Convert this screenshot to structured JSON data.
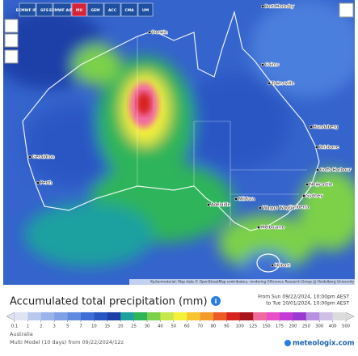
{
  "toolbar": {
    "models": [
      "ECMWF IFS",
      "GFS",
      "ECMWF AIFS",
      "MU",
      "GEM",
      "ACC",
      "CMA",
      "UM"
    ]
  },
  "map": {
    "cities": [
      "Port Moresby",
      "Darwin",
      "Cairns",
      "Townsville",
      "Bundaberg",
      "Brisbane",
      "Coffs Harbour",
      "Newcastle",
      "Sydney",
      "Canberra",
      "Wagga Wagga",
      "Mildura",
      "Adelaide",
      "Melbourne",
      "Hobart",
      "Geraldton",
      "Perth"
    ],
    "attribution": "Kartenmaterial: Map data © OpenStreetMap contributors, rendering GIScience Research Group @ Heidelberg University"
  },
  "legend": {
    "title": "Accumulated total precipitation (mm)",
    "from": "From Sun 09/22/2024, 10:00pm AEST",
    "to": "to Tue 10/01/2024, 10:00pm AEST",
    "ticks": [
      0.1,
      1,
      2,
      3,
      5,
      7,
      10,
      15,
      20,
      25,
      30,
      40,
      50,
      60,
      70,
      80,
      90,
      100,
      125,
      150,
      175,
      200,
      250,
      300,
      400,
      500
    ],
    "colors": [
      "#dfe3f2",
      "#b9c9ee",
      "#9ab3ea",
      "#7fa0e6",
      "#5e8ae0",
      "#3f6fd6",
      "#2a56c4",
      "#1d40a8",
      "#1fa0a0",
      "#2fb45a",
      "#7cd14a",
      "#c8e84a",
      "#f5f03a",
      "#f8c530",
      "#f39a2b",
      "#ec5b25",
      "#d6231f",
      "#a8141a",
      "#f06aa0",
      "#e84fc8",
      "#c53ad6",
      "#9a3ad2",
      "#b790e0",
      "#cfc0e6",
      "#dcdcdc"
    ]
  },
  "footer": {
    "region": "Australia",
    "model": "Multi Model (10 days) from 09/22/2024/12z",
    "brand": "meteologix.com"
  }
}
